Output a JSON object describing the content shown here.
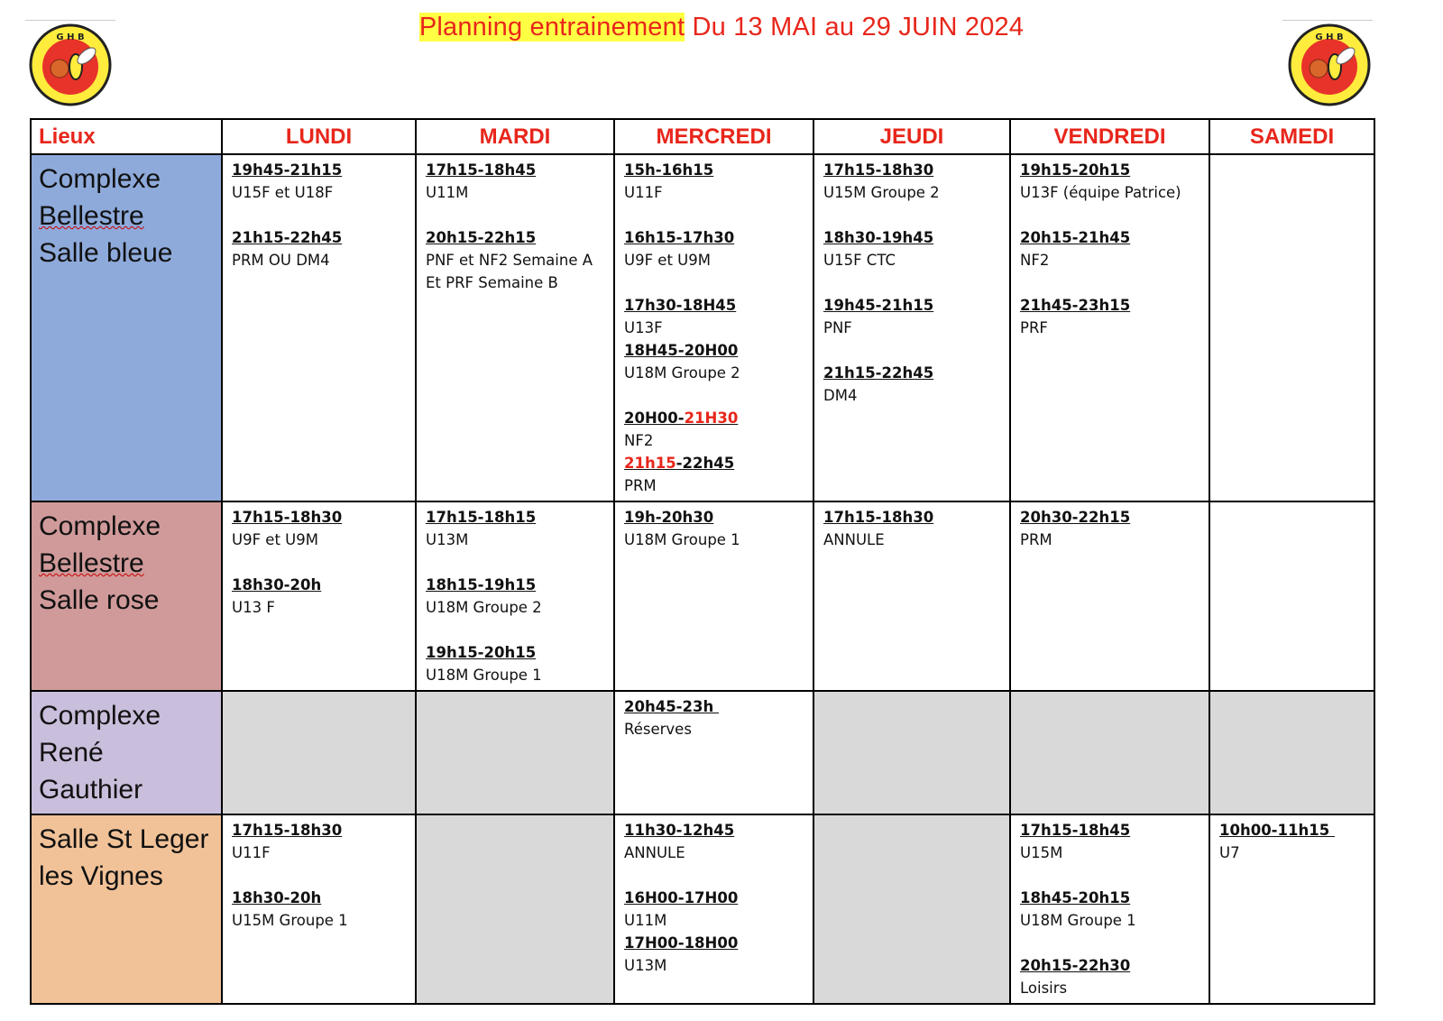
{
  "title": {
    "highlighted": "Planning entrainement",
    "rest": " Du 13 MAI au 29 JUIN 2024"
  },
  "logo": {
    "text": "GHB",
    "icon": "hornet-basketball-logo"
  },
  "colors": {
    "accent": "#e8261b",
    "grey_cell": "#d9d9d9"
  },
  "header": [
    "Lieux",
    "LUNDI",
    "MARDI",
    "MERCREDI",
    "JEUDI",
    "VENDREDI",
    "SAMEDI"
  ],
  "rows": [
    {
      "place": [
        "Complexe",
        "Bellestre",
        "Salle bleue"
      ],
      "color": "#8eaadb",
      "spellcheck_line": 1,
      "cells": [
        {
          "entries": [
            {
              "time": "19h45-21h15",
              "label": "U15F et U18F"
            },
            {
              "time": "21h15-22h45",
              "label": "PRM OU DM4"
            }
          ]
        },
        {
          "entries": [
            {
              "time": "17h15-18h45",
              "label": "U11M"
            },
            {
              "time": "20h15-22h15",
              "label": "PNF et NF2 Semaine A\nEt PRF Semaine B"
            }
          ]
        },
        {
          "entries": [
            {
              "time": "15h-16h15",
              "label": "U11F"
            },
            {
              "time": "16h15-17h30",
              "label": "U9F et U9M"
            },
            {
              "time": "17h30-18H45",
              "label": "U13F"
            },
            {
              "time": "18H45-20H00",
              "label": "U18M Groupe 2"
            },
            {
              "time_segments": [
                {
                  "text": "20H00-"
                },
                {
                  "text": "21H30",
                  "color": "#e8261b"
                }
              ],
              "label": "NF2"
            },
            {
              "time_segments": [
                {
                  "text": "21h15",
                  "color": "#e8261b"
                },
                {
                  "text": "-22h45"
                }
              ],
              "label": "PRM"
            }
          ]
        },
        {
          "entries": [
            {
              "time": "17h15-18h30",
              "label": "U15M Groupe 2"
            },
            {
              "time": "18h30-19h45",
              "label": "U15F CTC"
            },
            {
              "time": "19h45-21h15",
              "label": "PNF"
            },
            {
              "time": "21h15-22h45",
              "label": "DM4"
            }
          ]
        },
        {
          "entries": [
            {
              "time": "19h15-20h15",
              "label": "U13F (équipe Patrice)"
            },
            {
              "time": "20h15-21h45",
              "label": "NF2"
            },
            {
              "time": "21h45-23h15",
              "label": "PRF"
            }
          ]
        },
        {
          "entries": []
        }
      ]
    },
    {
      "place": [
        "Complexe",
        "Bellestre",
        "Salle rose"
      ],
      "color": "#d09a9a",
      "spellcheck_line": 1,
      "cells": [
        {
          "entries": [
            {
              "time": "17h15-18h30",
              "label": "U9F et U9M"
            },
            {
              "time": "18h30-20h",
              "label": "U13 F"
            }
          ]
        },
        {
          "entries": [
            {
              "time": "17h15-18h15",
              "label": "U13M"
            },
            {
              "time": "18h15-19h15",
              "label": "U18M Groupe 2"
            },
            {
              "time": "19h15-20h15",
              "label": "U18M Groupe 1"
            }
          ]
        },
        {
          "entries": [
            {
              "time": "19h-20h30",
              "label": "U18M Groupe 1"
            }
          ]
        },
        {
          "entries": [
            {
              "time": "17h15-18h30",
              "label": "ANNULE"
            }
          ]
        },
        {
          "entries": [
            {
              "time": "20h30-22h15",
              "label": "PRM"
            }
          ]
        },
        {
          "entries": []
        }
      ]
    },
    {
      "place": [
        "Complexe",
        "René",
        "Gauthier"
      ],
      "color": "#c9bedb",
      "cells": [
        {
          "entries": [],
          "grey": true
        },
        {
          "entries": [],
          "grey": true
        },
        {
          "entries": [
            {
              "time": "20h45-23h ",
              "label": "Réserves"
            }
          ]
        },
        {
          "entries": [],
          "grey": true
        },
        {
          "entries": [],
          "grey": true
        },
        {
          "entries": [],
          "grey": true
        }
      ]
    },
    {
      "place": [
        "Salle St Leger",
        "les Vignes"
      ],
      "color": "#f1c298",
      "cells": [
        {
          "entries": [
            {
              "time": "17h15-18h30",
              "label": "U11F"
            },
            {
              "time": "18h30-20h",
              "label": "U15M Groupe 1"
            }
          ]
        },
        {
          "entries": [],
          "grey": true
        },
        {
          "entries": [
            {
              "time": "11h30-12h45",
              "label": "ANNULE"
            },
            {
              "time": "16H00-17H00",
              "label": "U11M"
            },
            {
              "time": "17H00-18H00",
              "label": "U13M"
            }
          ]
        },
        {
          "entries": [],
          "grey": true
        },
        {
          "entries": [
            {
              "time": "17h15-18h45",
              "label": "U15M"
            },
            {
              "time": "18h45-20h15",
              "label": "U18M Groupe 1"
            },
            {
              "time": "20h15-22h30",
              "label": "Loisirs"
            }
          ]
        },
        {
          "entries": [
            {
              "time": "10h00-11h15 ",
              "label": "U7"
            }
          ]
        }
      ]
    }
  ]
}
